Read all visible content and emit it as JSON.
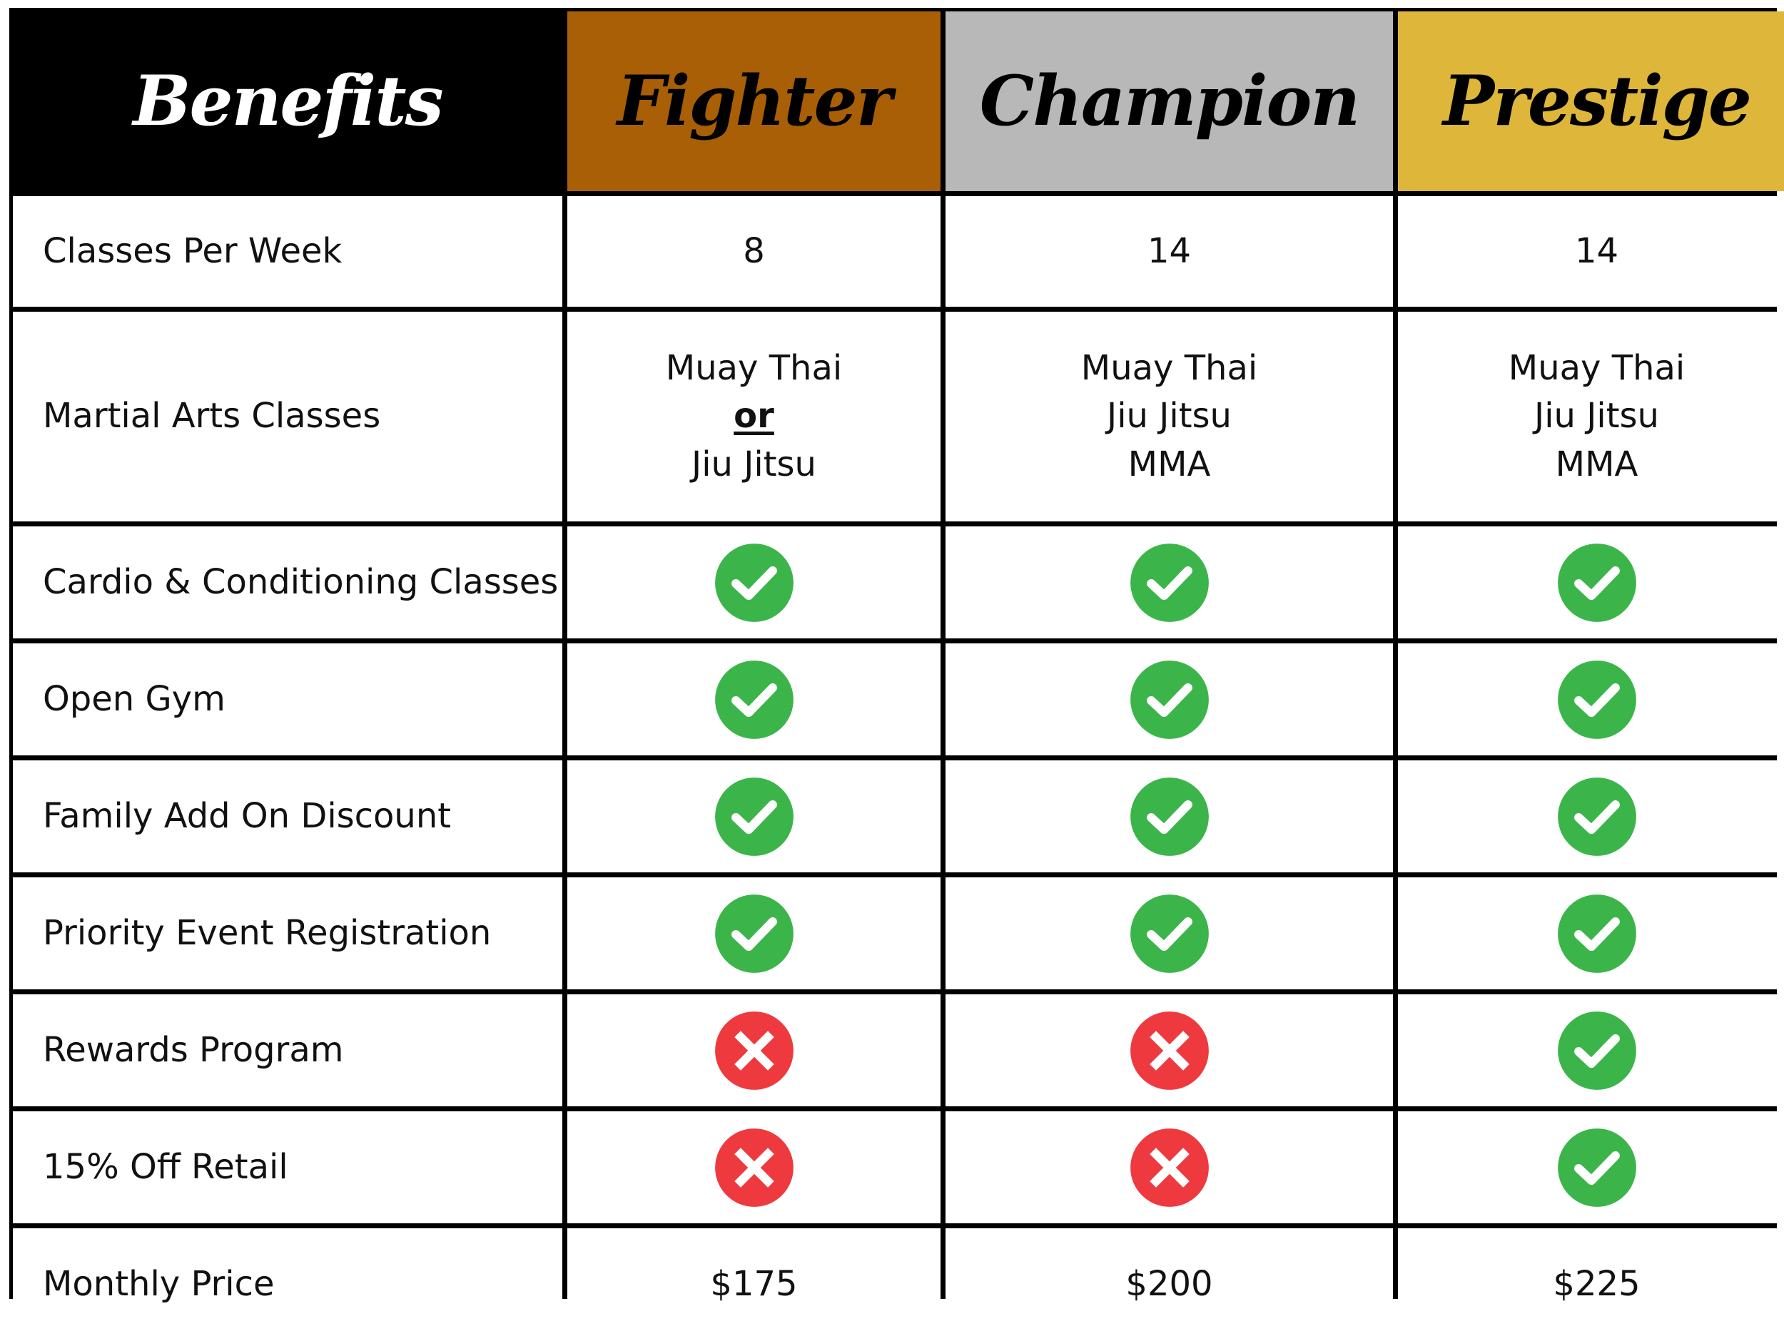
{
  "header": {
    "benefits": "Benefits",
    "tiers": [
      "Fighter",
      "Champion",
      "Prestige"
    ]
  },
  "colors": {
    "benefits_bg": "#000000",
    "fighter_bg": "#a95f05",
    "champion_bg": "#b8b8b8",
    "prestige_bg": "#deb63a",
    "check": "#3bb54a",
    "cross": "#ee3a3f"
  },
  "rows": [
    {
      "label": "Classes Per Week",
      "values": [
        "8",
        "14",
        "14"
      ]
    },
    {
      "label": "Martial Arts Classes",
      "fighter": {
        "line1": "Muay Thai",
        "connector": "or",
        "line2": "Jiu Jitsu"
      },
      "champion": [
        "Muay Thai",
        "Jiu Jitsu",
        "MMA"
      ],
      "prestige": [
        "Muay Thai",
        "Jiu Jitsu",
        "MMA"
      ]
    },
    {
      "label": "Cardio & Conditioning Classes",
      "marks": [
        "check-icon",
        "check-icon",
        "check-icon"
      ]
    },
    {
      "label": "Open Gym",
      "marks": [
        "check-icon",
        "check-icon",
        "check-icon"
      ]
    },
    {
      "label": "Family Add On Discount",
      "marks": [
        "check-icon",
        "check-icon",
        "check-icon"
      ]
    },
    {
      "label": "Priority Event Registration",
      "marks": [
        "check-icon",
        "check-icon",
        "check-icon"
      ]
    },
    {
      "label": "Rewards Program",
      "marks": [
        "cross-icon",
        "cross-icon",
        "check-icon"
      ]
    },
    {
      "label": "15% Off Retail",
      "marks": [
        "cross-icon",
        "cross-icon",
        "check-icon"
      ]
    },
    {
      "label": "Monthly Price",
      "values": [
        "$175",
        "$200",
        "$225"
      ]
    }
  ]
}
